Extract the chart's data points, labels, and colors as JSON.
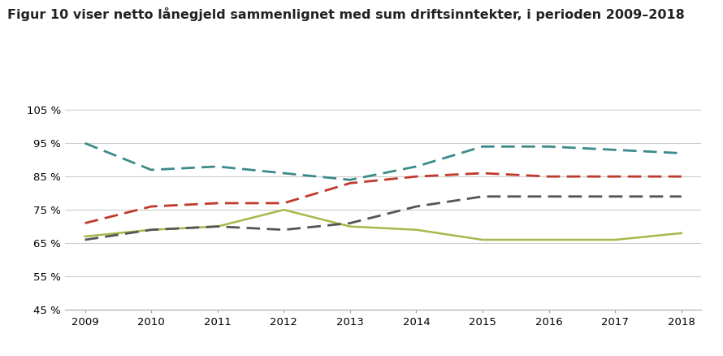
{
  "title": "Figur 10 viser netto lånegjeld sammenlignet med sum driftsinntekter, i perioden 2009–2018",
  "years": [
    2009,
    2010,
    2011,
    2012,
    2013,
    2014,
    2015,
    2016,
    2017,
    2018
  ],
  "series": {
    "Bærum": {
      "values": [
        67,
        69,
        70,
        75,
        70,
        69,
        66,
        66,
        66,
        68
      ],
      "color": "#a8b84b",
      "linestyle": "solid",
      "linewidth": 1.8,
      "dashes": null
    },
    "Asker": {
      "values": [
        95,
        87,
        88,
        86,
        84,
        88,
        94,
        94,
        93,
        92
      ],
      "color": "#3d8a8a",
      "linestyle": "dashed",
      "linewidth": 2.0,
      "dashes": [
        6,
        3
      ]
    },
    "ASSS": {
      "values": [
        71,
        76,
        77,
        77,
        83,
        85,
        86,
        85,
        85,
        85
      ],
      "color": "#c0392b",
      "linestyle": "dashed",
      "linewidth": 2.0,
      "dashes": [
        6,
        3
      ]
    },
    "Landet": {
      "values": [
        66,
        69,
        70,
        69,
        71,
        76,
        79,
        79,
        79,
        79
      ],
      "color": "#555555",
      "linestyle": "dashed",
      "linewidth": 2.0,
      "dashes": [
        6,
        3
      ]
    }
  },
  "ylim": [
    45,
    107
  ],
  "yticks": [
    45,
    55,
    65,
    75,
    85,
    95,
    105
  ],
  "ytick_labels": [
    "45 %",
    "55 %",
    "65 %",
    "75 %",
    "85 %",
    "95 %",
    "105 %"
  ],
  "grid_color": "#cccccc",
  "background_color": "#ffffff",
  "title_fontsize": 11.5,
  "axis_fontsize": 9.5,
  "legend_fontsize": 9.5
}
